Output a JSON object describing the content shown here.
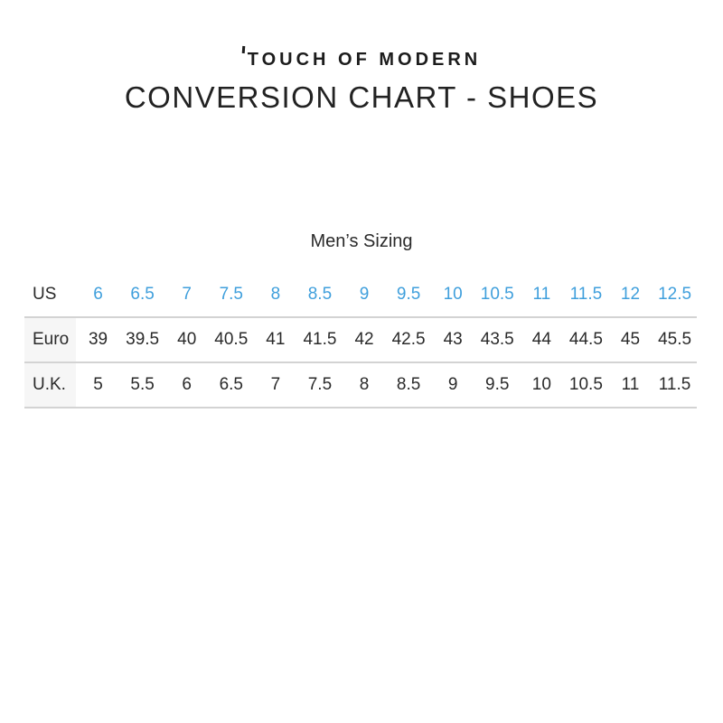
{
  "page": {
    "brand": "TOUCH OF MODERN",
    "title": "CONVERSION CHART - SHOES",
    "section_title": "Men’s Sizing"
  },
  "icons": {
    "logo_tick": "small-vertical-tick-before-T"
  },
  "colors": {
    "accent_blue": "#3f9fdc",
    "text_dark": "#2a2a2a",
    "divider_line": "#d3d3d3",
    "label_column_bg": "#f6f6f6"
  },
  "chart_data": {
    "type": "table",
    "title": "Men’s Sizing",
    "column_header_row": "US",
    "rows": [
      {
        "label": "US",
        "highlight": true,
        "values": [
          "6",
          "6.5",
          "7",
          "7.5",
          "8",
          "8.5",
          "9",
          "9.5",
          "10",
          "10.5",
          "11",
          "11.5",
          "12",
          "12.5"
        ]
      },
      {
        "label": "Euro",
        "highlight": false,
        "values": [
          "39",
          "39.5",
          "40",
          "40.5",
          "41",
          "41.5",
          "42",
          "42.5",
          "43",
          "43.5",
          "44",
          "44.5",
          "45",
          "45.5"
        ]
      },
      {
        "label": "U.K.",
        "highlight": false,
        "values": [
          "5",
          "5.5",
          "6",
          "6.5",
          "7",
          "7.5",
          "8",
          "8.5",
          "9",
          "9.5",
          "10",
          "10.5",
          "11",
          "11.5"
        ]
      }
    ]
  }
}
